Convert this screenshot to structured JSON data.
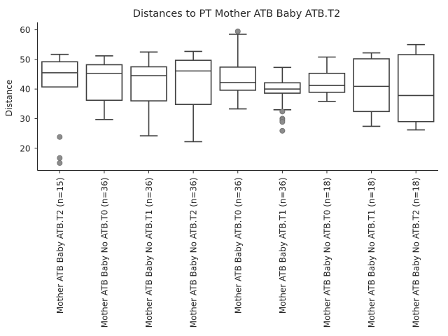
{
  "chart_data": {
    "type": "box",
    "title": "Distances to PT Mother ATB Baby ATB.T2",
    "xlabel": "",
    "ylabel": "Distance",
    "ylim": [
      12.5,
      62.5
    ],
    "yticks": [
      20,
      30,
      40,
      50,
      60
    ],
    "grid": false,
    "categories": [
      "Mother ATB Baby ATB.T2 (n=15)",
      "Mother ATB Baby No ATB.T0 (n=36)",
      "Mother ATB Baby No ATB.T1 (n=36)",
      "Mother ATB Baby No ATB.T2 (n=36)",
      "Mother ATB Baby ATB.T0 (n=36)",
      "Mother ATB Baby ATB.T1 (n=36)",
      "Mother ATB Baby No ATB.T0 (n=18)",
      "Mother ATB Baby No ATB.T1 (n=18)",
      "Mother ATB Baby No ATB.T2 (n=18)"
    ],
    "boxes": [
      {
        "whisker_low": 40.7,
        "q1": 40.7,
        "median": 45.5,
        "q3": 49.2,
        "whisker_high": 51.7,
        "outliers": [
          23.8,
          16.7,
          15.0
        ]
      },
      {
        "whisker_low": 29.7,
        "q1": 36.2,
        "median": 45.3,
        "q3": 48.2,
        "whisker_high": 51.2,
        "outliers": []
      },
      {
        "whisker_low": 24.2,
        "q1": 36.0,
        "median": 44.5,
        "q3": 47.5,
        "whisker_high": 52.5,
        "outliers": []
      },
      {
        "whisker_low": 22.2,
        "q1": 34.8,
        "median": 46.1,
        "q3": 49.7,
        "whisker_high": 52.7,
        "outliers": []
      },
      {
        "whisker_low": 33.3,
        "q1": 39.6,
        "median": 42.2,
        "q3": 47.4,
        "whisker_high": 58.5,
        "outliers": [
          59.5
        ]
      },
      {
        "whisker_low": 33.0,
        "q1": 38.6,
        "median": 40.0,
        "q3": 42.1,
        "whisker_high": 47.3,
        "outliers": [
          32.4,
          30.0,
          29.5,
          28.9,
          25.9
        ]
      },
      {
        "whisker_low": 35.8,
        "q1": 38.9,
        "median": 41.2,
        "q3": 45.3,
        "whisker_high": 50.8,
        "outliers": []
      },
      {
        "whisker_low": 27.4,
        "q1": 32.4,
        "median": 40.9,
        "q3": 50.2,
        "whisker_high": 52.2,
        "outliers": []
      },
      {
        "whisker_low": 26.2,
        "q1": 29.0,
        "median": 37.8,
        "q3": 51.6,
        "whisker_high": 55.0,
        "outliers": []
      }
    ],
    "colors": {
      "box_edge": "#3f3f3f",
      "outlier_fill": "#8c8c8c",
      "text": "#262626",
      "axis": "#262626"
    }
  }
}
